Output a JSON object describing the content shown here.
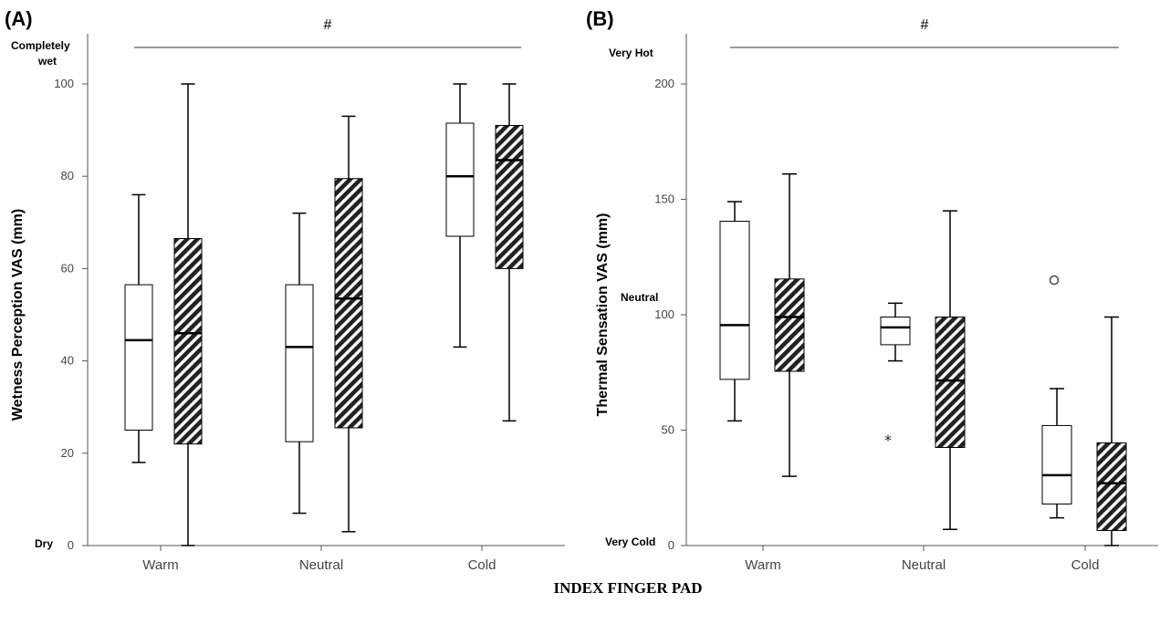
{
  "footer_label": "INDEX FINGER PAD",
  "chart_data": [
    {
      "type": "boxplot",
      "panel": "(A)",
      "significance_marker": "#",
      "ylabel": "Wetness Perception VAS (mm)",
      "ylim": [
        0,
        100
      ],
      "yticks": [
        0,
        20,
        40,
        60,
        80,
        100
      ],
      "anchor_top": [
        "Completely",
        "wet"
      ],
      "anchor_bottom": "Dry",
      "categories": [
        "Warm",
        "Neutral",
        "Cold"
      ],
      "series": [
        {
          "style": "open",
          "boxes": [
            {
              "min": 18,
              "q1": 25,
              "median": 44.5,
              "q3": 56.5,
              "max": 76
            },
            {
              "min": 7,
              "q1": 22.5,
              "median": 43,
              "q3": 56.5,
              "max": 72
            },
            {
              "min": 43,
              "q1": 67,
              "median": 80,
              "q3": 91.5,
              "max": 100
            }
          ]
        },
        {
          "style": "hatched",
          "boxes": [
            {
              "min": 0,
              "q1": 22,
              "median": 46,
              "q3": 66.5,
              "max": 100
            },
            {
              "min": 3,
              "q1": 25.5,
              "median": 53.5,
              "q3": 79.5,
              "max": 93
            },
            {
              "min": 27,
              "q1": 60,
              "median": 83.5,
              "q3": 91,
              "max": 100
            }
          ]
        }
      ]
    },
    {
      "type": "boxplot",
      "panel": "(B)",
      "significance_marker": "#",
      "ylabel": "Thermal Sensation  VAS (mm)",
      "ylim": [
        0,
        200
      ],
      "yticks": [
        0,
        50,
        100,
        150,
        200
      ],
      "anchor_top": "Very Hot",
      "anchor_mid": "Neutral",
      "anchor_bottom": "Very Cold",
      "categories": [
        "Warm",
        "Neutral",
        "Cold"
      ],
      "series": [
        {
          "style": "open",
          "boxes": [
            {
              "min": 54,
              "q1": 72,
              "median": 95.5,
              "q3": 140.5,
              "max": 149,
              "outliers": []
            },
            {
              "min": 80,
              "q1": 87,
              "median": 94.5,
              "q3": 99,
              "max": 105,
              "outliers": [
                {
                  "value": 47,
                  "kind": "extreme"
                }
              ]
            },
            {
              "min": 12,
              "q1": 18,
              "median": 30.5,
              "q3": 52,
              "max": 68,
              "outliers": [
                {
                  "value": 115,
                  "kind": "outlier"
                }
              ]
            }
          ]
        },
        {
          "style": "hatched",
          "boxes": [
            {
              "min": 30,
              "q1": 75.5,
              "median": 99,
              "q3": 115.5,
              "max": 161,
              "outliers": []
            },
            {
              "min": 7,
              "q1": 42.5,
              "median": 71.5,
              "q3": 99,
              "max": 145,
              "outliers": []
            },
            {
              "min": 0,
              "q1": 6.5,
              "median": 27,
              "q3": 44.5,
              "max": 99,
              "outliers": []
            }
          ]
        }
      ]
    }
  ]
}
